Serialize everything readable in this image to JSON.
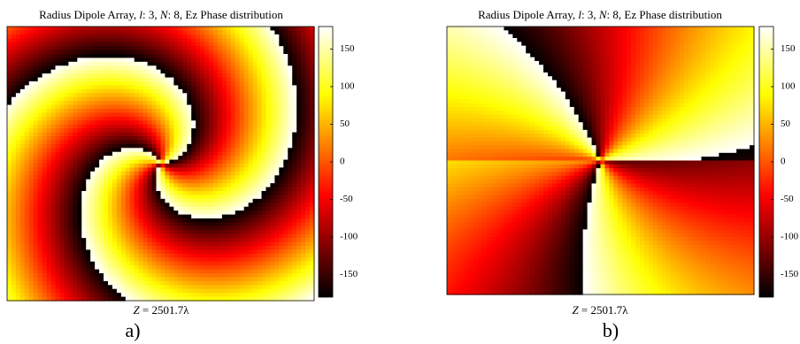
{
  "figures": [
    {
      "title": [
        "Radius Dipole Array, ",
        "l",
        ": 3, ",
        "N",
        ": 8, Ez Phase distribution"
      ],
      "caption": [
        "Z",
        " = 2501.7λ"
      ],
      "label": "a)",
      "colorbar": {
        "lim": [
          -180,
          180
        ],
        "ticks": [
          150,
          100,
          50,
          0,
          -50,
          -100,
          -150
        ]
      }
    },
    {
      "title": [
        "Radius Dipole Array, ",
        "l",
        ": 3, ",
        "N",
        ": 8, Ez Phase distribution"
      ],
      "caption": [
        "Z",
        " = 2501.7λ"
      ],
      "label": "b)",
      "colorbar": {
        "lim": [
          -180,
          180
        ],
        "ticks": [
          150,
          100,
          50,
          0,
          -50,
          -100,
          -150
        ]
      }
    }
  ]
}
